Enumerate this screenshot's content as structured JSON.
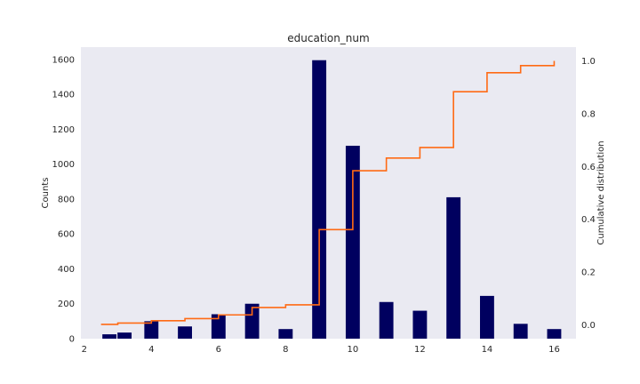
{
  "colors": {
    "plot_background": "#eaeaf2",
    "bar": "#00005f",
    "line": "#ff6a14",
    "text": "#262626"
  },
  "chart_data": {
    "type": "bar",
    "title": "education_num",
    "xlabel": "",
    "ylabel": "Counts",
    "y2label": "Cumulative distribution",
    "xlim": [
      1.9,
      16.65
    ],
    "ylim": [
      0,
      1670
    ],
    "y2lim": [
      -0.052,
      1.052
    ],
    "x_ticks": [
      2,
      4,
      6,
      8,
      10,
      12,
      14,
      16
    ],
    "y_ticks": [
      0,
      200,
      400,
      600,
      800,
      1000,
      1200,
      1400,
      1600
    ],
    "y2_ticks": [
      0.0,
      0.2,
      0.4,
      0.6,
      0.8,
      1.0
    ],
    "y2_tick_labels": [
      "0.0",
      "0.2",
      "0.4",
      "0.6",
      "0.8",
      "1.0"
    ],
    "grid": false,
    "bar_width": 0.42,
    "series": [
      {
        "type": "bar",
        "x": [
          2.75,
          3.2,
          4.0,
          5.0,
          6.0,
          7.0,
          8.0,
          9.0,
          10.0,
          11.0,
          12.0,
          13.0,
          14.0,
          15.0,
          16.0
        ],
        "values": [
          25,
          35,
          100,
          70,
          140,
          200,
          55,
          1595,
          1105,
          210,
          160,
          810,
          245,
          85,
          55
        ]
      },
      {
        "type": "step",
        "axis": "y2",
        "x": [
          2.5,
          3.0,
          4.0,
          5.0,
          6.0,
          7.0,
          8.0,
          9.0,
          10.0,
          11.0,
          12.0,
          13.0,
          14.0,
          15.0,
          16.0
        ],
        "values": [
          0.002,
          0.007,
          0.016,
          0.024,
          0.038,
          0.066,
          0.076,
          0.361,
          0.584,
          0.632,
          0.672,
          0.883,
          0.955,
          0.982,
          1.0
        ]
      }
    ]
  }
}
